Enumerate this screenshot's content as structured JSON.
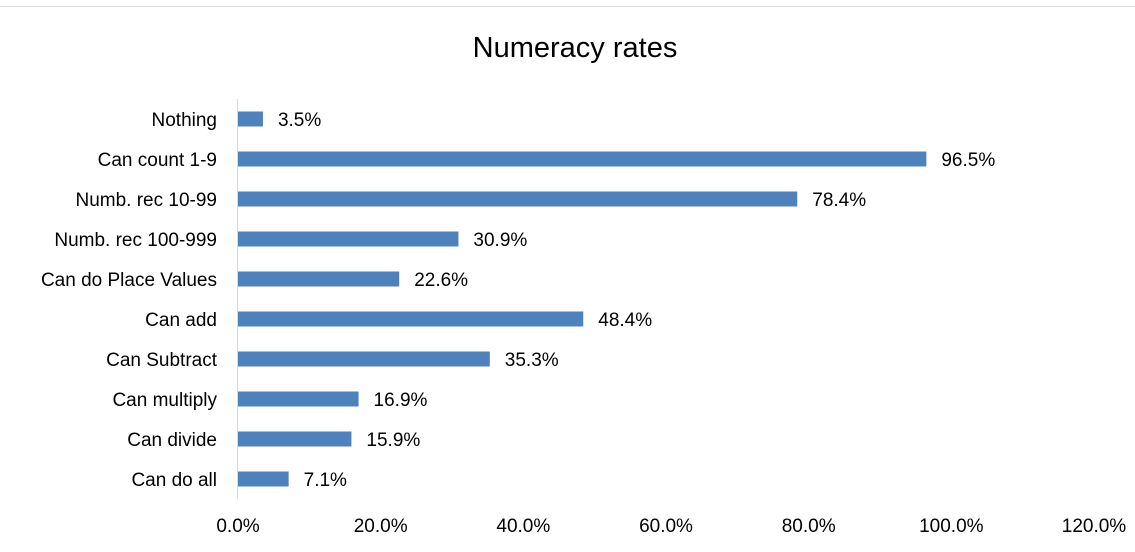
{
  "chart_data": {
    "type": "bar",
    "orientation": "horizontal",
    "title": "Numeracy rates",
    "categories": [
      "Nothing",
      "Can count 1-9",
      "Numb. rec  10-99",
      "Numb. rec 100-999",
      "Can do Place Values",
      "Can add",
      "Can Subtract",
      "Can multiply",
      "Can divide",
      "Can do all"
    ],
    "values": [
      3.5,
      96.5,
      78.4,
      30.9,
      22.6,
      48.4,
      35.3,
      16.9,
      15.9,
      7.1
    ],
    "value_labels": [
      "3.5%",
      "96.5%",
      "78.4%",
      "30.9%",
      "22.6%",
      "48.4%",
      "35.3%",
      "16.9%",
      "15.9%",
      "7.1%"
    ],
    "x_ticks": [
      0,
      20,
      40,
      60,
      80,
      100,
      120
    ],
    "x_tick_labels": [
      "0.0%",
      "20.0%",
      "40.0%",
      "60.0%",
      "80.0%",
      "100.0%",
      "120.0%"
    ],
    "xlim": [
      0,
      120
    ],
    "xlabel": "",
    "ylabel": "",
    "grid": false,
    "legend": "none",
    "bar_color": "#4f81bd"
  }
}
